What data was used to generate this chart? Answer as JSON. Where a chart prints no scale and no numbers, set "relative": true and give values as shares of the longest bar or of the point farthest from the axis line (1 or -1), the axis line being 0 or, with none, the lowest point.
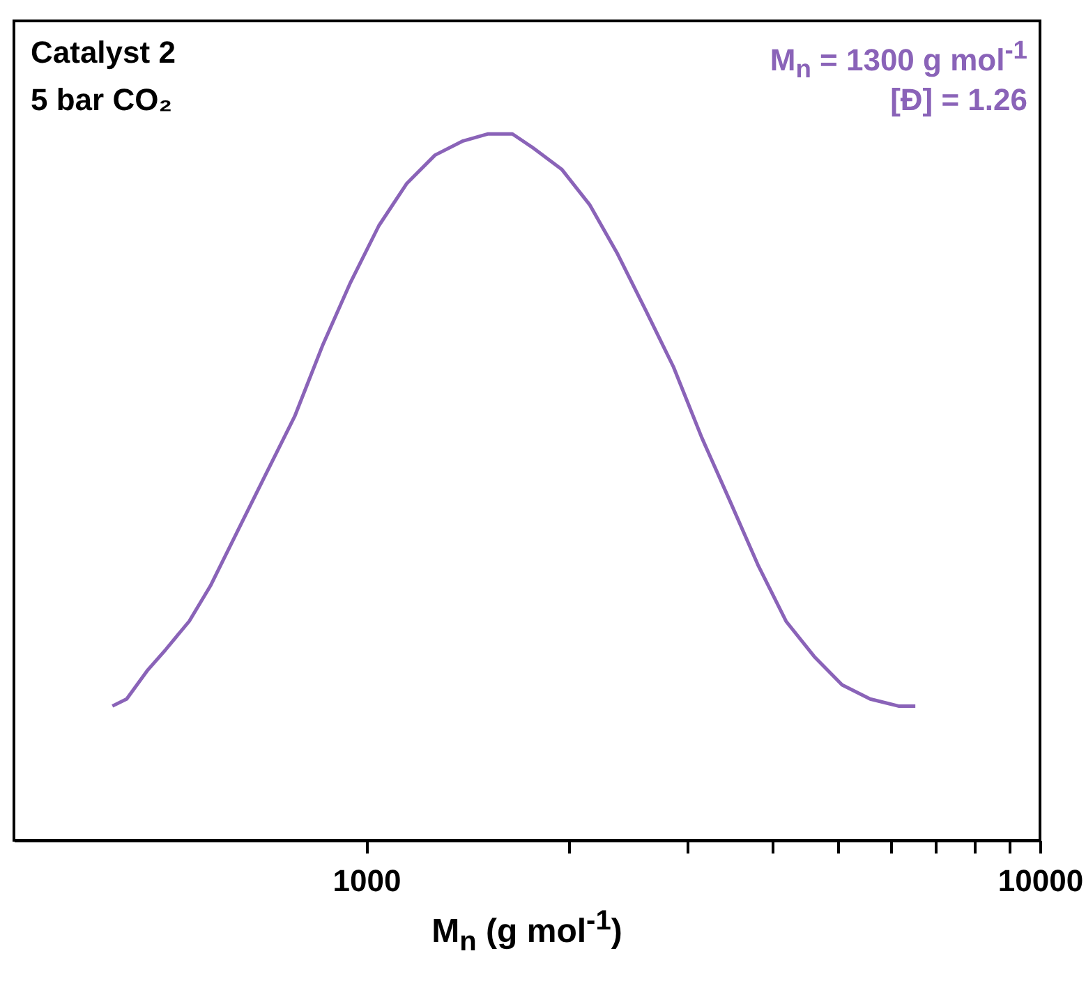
{
  "chart_data": {
    "type": "line",
    "relative": true,
    "xlabel": "M$_{n}$ (g mol$^{-1}$)",
    "log": "x",
    "xlim": [
      300,
      10000
    ],
    "xticks": [
      1000,
      {
        "value": 2000,
        "label": null
      },
      {
        "value": 3000,
        "label": null
      },
      {
        "value": 4000,
        "label": null
      },
      {
        "value": 5000,
        "label": null
      },
      {
        "value": 6000,
        "label": null
      },
      {
        "value": 7000,
        "label": null
      },
      {
        "value": 8000,
        "label": null
      },
      {
        "value": 9000,
        "label": null
      },
      10000
    ],
    "tick_labels": "x",
    "annotations": [
      "Catalyst 2",
      "5 bar CO₂",
      "M$_{n}$ = 1300 g mol$^{-1}$",
      "[Đ] = 1.26"
    ],
    "series": [
      {
        "color": "#8a63b8",
        "x": [
          420,
          441,
          473,
          504,
          546,
          587,
          646,
          711,
          783,
          861,
          948,
          1044,
          1149,
          1265,
          1392,
          1517,
          1648,
          1770,
          1950,
          2145,
          2361,
          2600,
          2858,
          3148,
          3467,
          3813,
          4199,
          4624,
          5085,
          5597,
          6166,
          6531
        ],
        "values": [
          0.19,
          0.2,
          0.24,
          0.27,
          0.31,
          0.36,
          0.44,
          0.52,
          0.6,
          0.7,
          0.79,
          0.87,
          0.93,
          0.97,
          0.99,
          1,
          1,
          0.98,
          0.95,
          0.9,
          0.83,
          0.75,
          0.67,
          0.57,
          0.48,
          0.39,
          0.31,
          0.26,
          0.22,
          0.2,
          0.19,
          0.19
        ]
      }
    ]
  }
}
